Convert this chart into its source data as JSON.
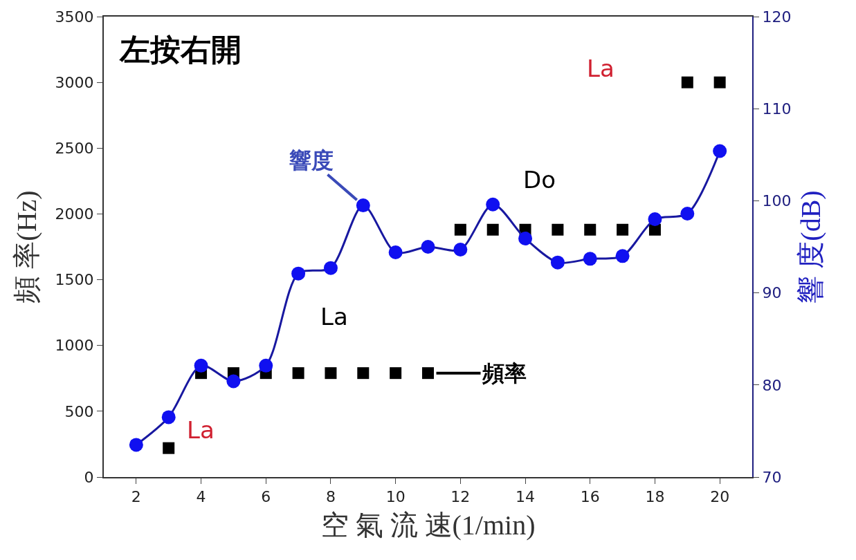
{
  "chart_data": {
    "type": "scatter",
    "title": "左按右開",
    "xlabel": "空 氣 流 速(1/min)",
    "ylabel": "頻 率(Hz)",
    "y2label": "響 度(dB)",
    "x": [
      2,
      3,
      4,
      5,
      6,
      7,
      8,
      9,
      10,
      11,
      12,
      13,
      14,
      15,
      16,
      17,
      18,
      19,
      20
    ],
    "series": [
      {
        "name": "頻率",
        "marker": "square",
        "color": "#000000",
        "values": [
          null,
          220,
          790,
          790,
          790,
          790,
          790,
          790,
          790,
          790,
          1880,
          1880,
          1880,
          1880,
          1880,
          1880,
          1880,
          3000,
          3000
        ]
      },
      {
        "name": "響度",
        "type": "line",
        "marker": "circle",
        "color": "#1010f0",
        "axis": "y2",
        "values": [
          73.5,
          76.5,
          82.1,
          80.4,
          82.1,
          92.1,
          92.7,
          99.5,
          94.4,
          95.0,
          94.7,
          99.6,
          95.9,
          93.3,
          93.7,
          94.0,
          98.0,
          98.6,
          105.4
        ]
      }
    ],
    "annotations": [
      "La",
      "La",
      "Do",
      "La"
    ],
    "xlim": [
      1,
      21
    ],
    "xticks": [
      2,
      4,
      6,
      8,
      10,
      12,
      14,
      16,
      18,
      20
    ],
    "ylim": [
      0,
      3500
    ],
    "yticks": [
      0,
      500,
      1000,
      1500,
      2000,
      2500,
      3000,
      3500
    ],
    "y2lim": [
      70,
      120
    ],
    "y2ticks": [
      70,
      80,
      90,
      100,
      110,
      120
    ],
    "grid": false
  }
}
